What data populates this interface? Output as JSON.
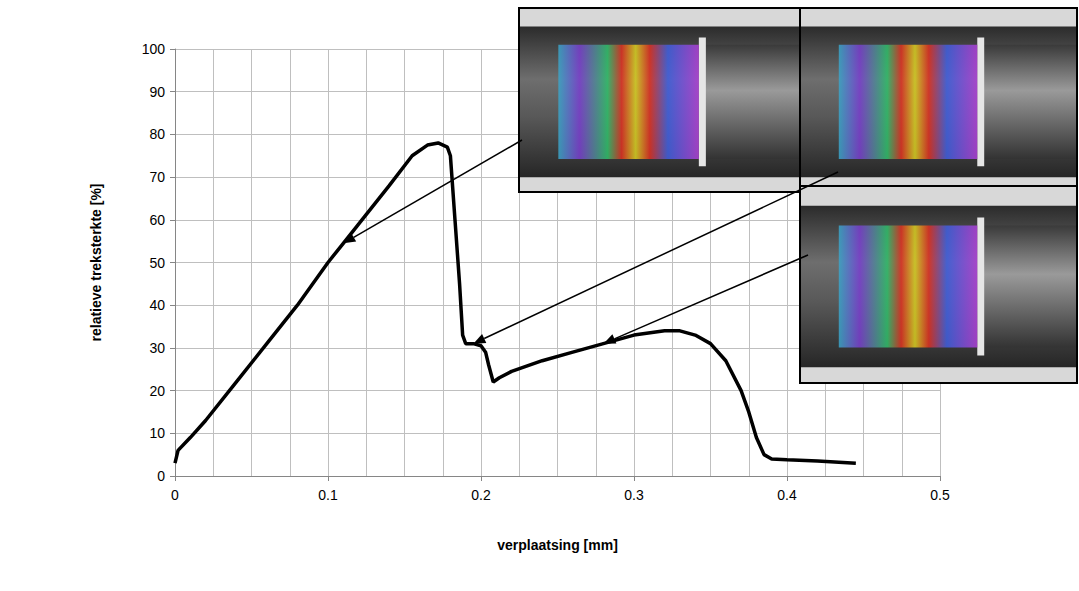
{
  "chart_data": {
    "type": "line",
    "x_label": "verplaatsing [mm]",
    "y_label": "relatieve treksterkte [%]",
    "x": [
      0,
      0.002,
      0.01,
      0.02,
      0.04,
      0.06,
      0.08,
      0.1,
      0.11,
      0.12,
      0.14,
      0.155,
      0.165,
      0.172,
      0.178,
      0.18,
      0.183,
      0.186,
      0.188,
      0.19,
      0.195,
      0.2,
      0.203,
      0.205,
      0.208,
      0.212,
      0.22,
      0.24,
      0.26,
      0.28,
      0.3,
      0.32,
      0.33,
      0.34,
      0.35,
      0.36,
      0.37,
      0.375,
      0.38,
      0.385,
      0.39,
      0.4,
      0.42,
      0.445
    ],
    "values": [
      3,
      6,
      9,
      13,
      22,
      31,
      40,
      50,
      54.5,
      59,
      68,
      75,
      77.5,
      78,
      77,
      75,
      60,
      45,
      33,
      31,
      31,
      30.5,
      29,
      26,
      22,
      23,
      24.5,
      27,
      29,
      31,
      33,
      34,
      34,
      33,
      31,
      27,
      20,
      15,
      9,
      5,
      4,
      3.8,
      3.5,
      3
    ],
    "color": "#000000",
    "xlim": [
      0,
      0.5
    ],
    "xticks": [
      0,
      0.1,
      0.2,
      0.3,
      0.4,
      0.5
    ],
    "ylim": [
      0,
      100
    ],
    "yticks": [
      0,
      10,
      20,
      30,
      40,
      50,
      60,
      70,
      80,
      90,
      100
    ],
    "grid": true
  }
}
